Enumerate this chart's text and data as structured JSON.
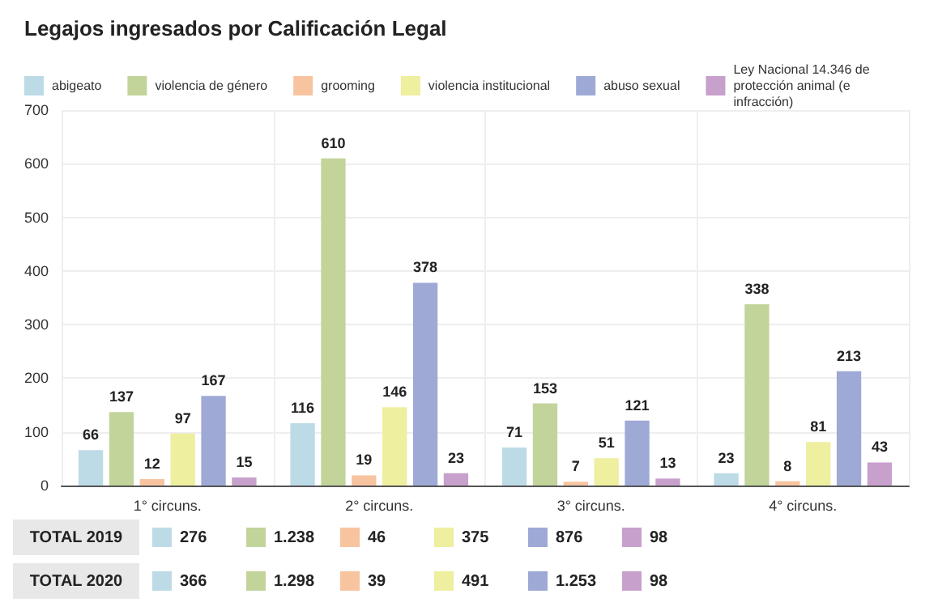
{
  "chart_data": {
    "type": "bar",
    "title": "Legajos ingresados por Calificación Legal",
    "categories": [
      "1° circuns.",
      "2° circuns.",
      "3° circuns.",
      "4° circuns."
    ],
    "series": [
      {
        "name": "abigeato",
        "color": "#bcdbe6",
        "values": [
          66,
          116,
          71,
          23
        ]
      },
      {
        "name": "violencia de género",
        "color": "#c2d49a",
        "values": [
          137,
          610,
          153,
          338
        ]
      },
      {
        "name": "grooming",
        "color": "#f8c4a0",
        "values": [
          12,
          19,
          7,
          8
        ]
      },
      {
        "name": "violencia institucional",
        "color": "#eeef9f",
        "values": [
          97,
          146,
          51,
          81
        ]
      },
      {
        "name": "abuso sexual",
        "color": "#9ea9d6",
        "values": [
          167,
          378,
          121,
          213
        ]
      },
      {
        "name": "Ley Nacional 14.346 de protección animal (e infracción)",
        "color": "#c7a0cc",
        "values": [
          15,
          23,
          13,
          43
        ]
      }
    ],
    "ylim": [
      0,
      700
    ],
    "yticks": [
      0,
      100,
      200,
      300,
      400,
      500,
      600,
      700
    ],
    "grid": true,
    "legend": "top left",
    "data_labels": true,
    "annotations": [
      "TOTAL 2019",
      "276",
      "1.238",
      "46",
      "375",
      "876",
      "98",
      "TOTAL 2020",
      "366",
      "1.298",
      "39",
      "491",
      "1.253",
      "98"
    ]
  }
}
